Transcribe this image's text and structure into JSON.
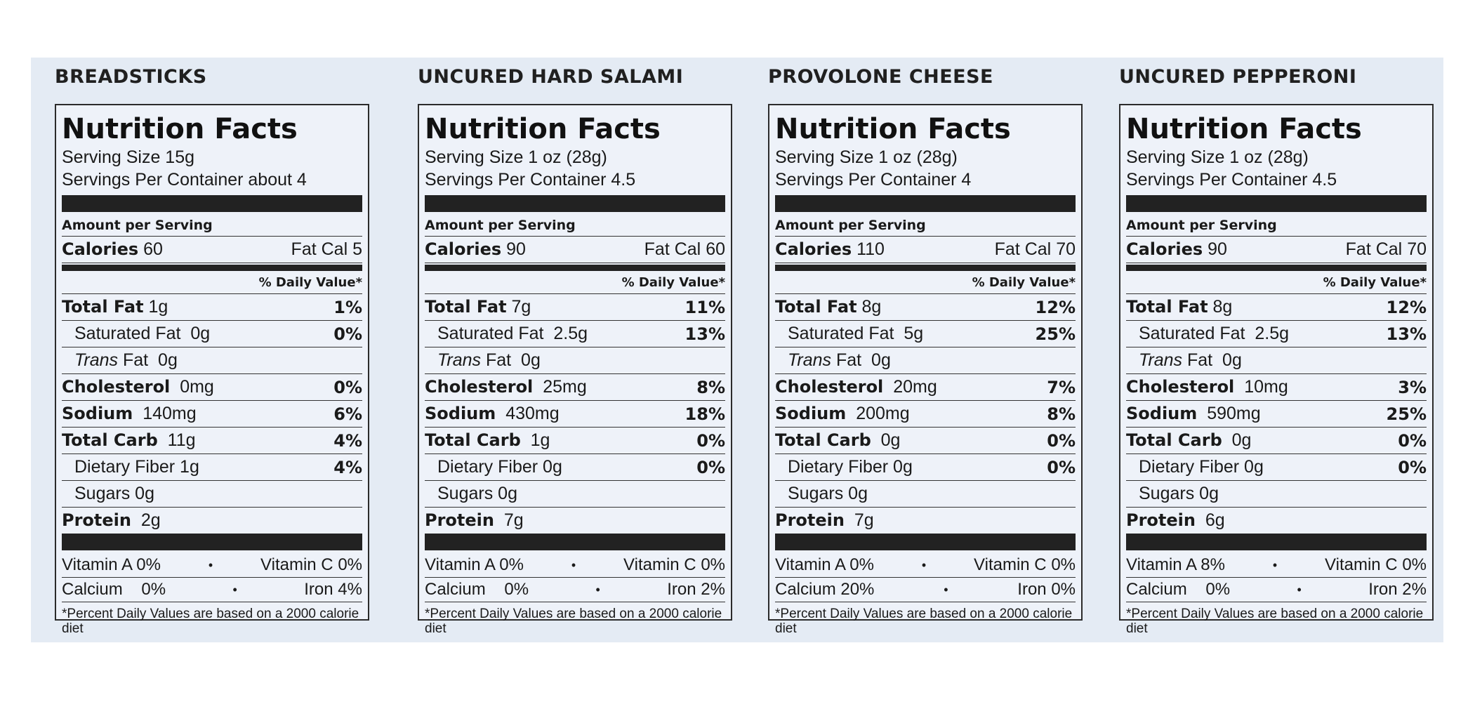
{
  "common": {
    "nf_title": "Nutrition Facts",
    "amount_per_serving": "Amount per Serving",
    "calories_label": "Calories",
    "fat_cal_label": "Fat Cal",
    "daily_value_header": "% Daily Value*",
    "total_fat_label": "Total Fat",
    "sat_fat_label": "Saturated Fat",
    "trans_label_italic": "Trans",
    "trans_label_rest": " Fat",
    "cholesterol_label": "Cholesterol",
    "sodium_label": "Sodium",
    "total_carb_label": "Total Carb",
    "fiber_label": "Dietary Fiber",
    "sugars_label": "Sugars",
    "protein_label": "Protein",
    "vitamin_a_label": "Vitamin A",
    "vitamin_c_label": "Vitamin C",
    "calcium_label": "Calcium",
    "iron_label": "Iron",
    "bullet": "•",
    "footnote": "*Percent Daily Values are based on a 2000 calorie diet"
  },
  "panels": [
    {
      "product": "BREADSTICKS",
      "serving_size": "Serving Size 15g",
      "servings_per_container": "Servings Per Container about 4",
      "calories": "60",
      "fat_cal": "5",
      "total_fat": "1g",
      "total_fat_pct": "1%",
      "sat_fat": "0g",
      "sat_fat_pct": "0%",
      "trans_fat": "0g",
      "cholesterol": "0mg",
      "cholesterol_pct": "0%",
      "sodium": "140mg",
      "sodium_pct": "6%",
      "total_carb": "11g",
      "total_carb_pct": "4%",
      "fiber": "1g",
      "fiber_pct": "4%",
      "sugars": "0g",
      "protein": "2g",
      "vitamin_a": "0%",
      "vitamin_c": "0%",
      "calcium": "0%",
      "iron": "4%"
    },
    {
      "product": "UNCURED HARD SALAMI",
      "serving_size": "Serving Size 1 oz (28g)",
      "servings_per_container": "Servings Per Container 4.5",
      "calories": "90",
      "fat_cal": "60",
      "total_fat": "7g",
      "total_fat_pct": "11%",
      "sat_fat": "2.5g",
      "sat_fat_pct": "13%",
      "trans_fat": "0g",
      "cholesterol": "25mg",
      "cholesterol_pct": "8%",
      "sodium": "430mg",
      "sodium_pct": "18%",
      "total_carb": "1g",
      "total_carb_pct": "0%",
      "fiber": "0g",
      "fiber_pct": "0%",
      "sugars": "0g",
      "protein": "7g",
      "vitamin_a": "0%",
      "vitamin_c": "0%",
      "calcium": "0%",
      "iron": "2%"
    },
    {
      "product": "PROVOLONE CHEESE",
      "serving_size": "Serving Size 1 oz (28g)",
      "servings_per_container": "Servings Per Container 4",
      "calories": "110",
      "fat_cal": "70",
      "total_fat": "8g",
      "total_fat_pct": "12%",
      "sat_fat": "5g",
      "sat_fat_pct": "25%",
      "trans_fat": "0g",
      "cholesterol": "20mg",
      "cholesterol_pct": "7%",
      "sodium": "200mg",
      "sodium_pct": "8%",
      "total_carb": "0g",
      "total_carb_pct": "0%",
      "fiber": "0g",
      "fiber_pct": "0%",
      "sugars": "0g",
      "protein": "7g",
      "vitamin_a": "0%",
      "vitamin_c": "0%",
      "calcium": "20%",
      "iron": "0%"
    },
    {
      "product": "UNCURED PEPPERONI",
      "serving_size": "Serving Size 1 oz (28g)",
      "servings_per_container": "Servings Per Container 4.5",
      "calories": "90",
      "fat_cal": "70",
      "total_fat": "8g",
      "total_fat_pct": "12%",
      "sat_fat": "2.5g",
      "sat_fat_pct": "13%",
      "trans_fat": "0g",
      "cholesterol": "10mg",
      "cholesterol_pct": "3%",
      "sodium": "590mg",
      "sodium_pct": "25%",
      "total_carb": "0g",
      "total_carb_pct": "0%",
      "fiber": "0g",
      "fiber_pct": "0%",
      "sugars": "0g",
      "protein": "6g",
      "vitamin_a": "8%",
      "vitamin_c": "0%",
      "calcium": "0%",
      "iron": "2%"
    }
  ]
}
